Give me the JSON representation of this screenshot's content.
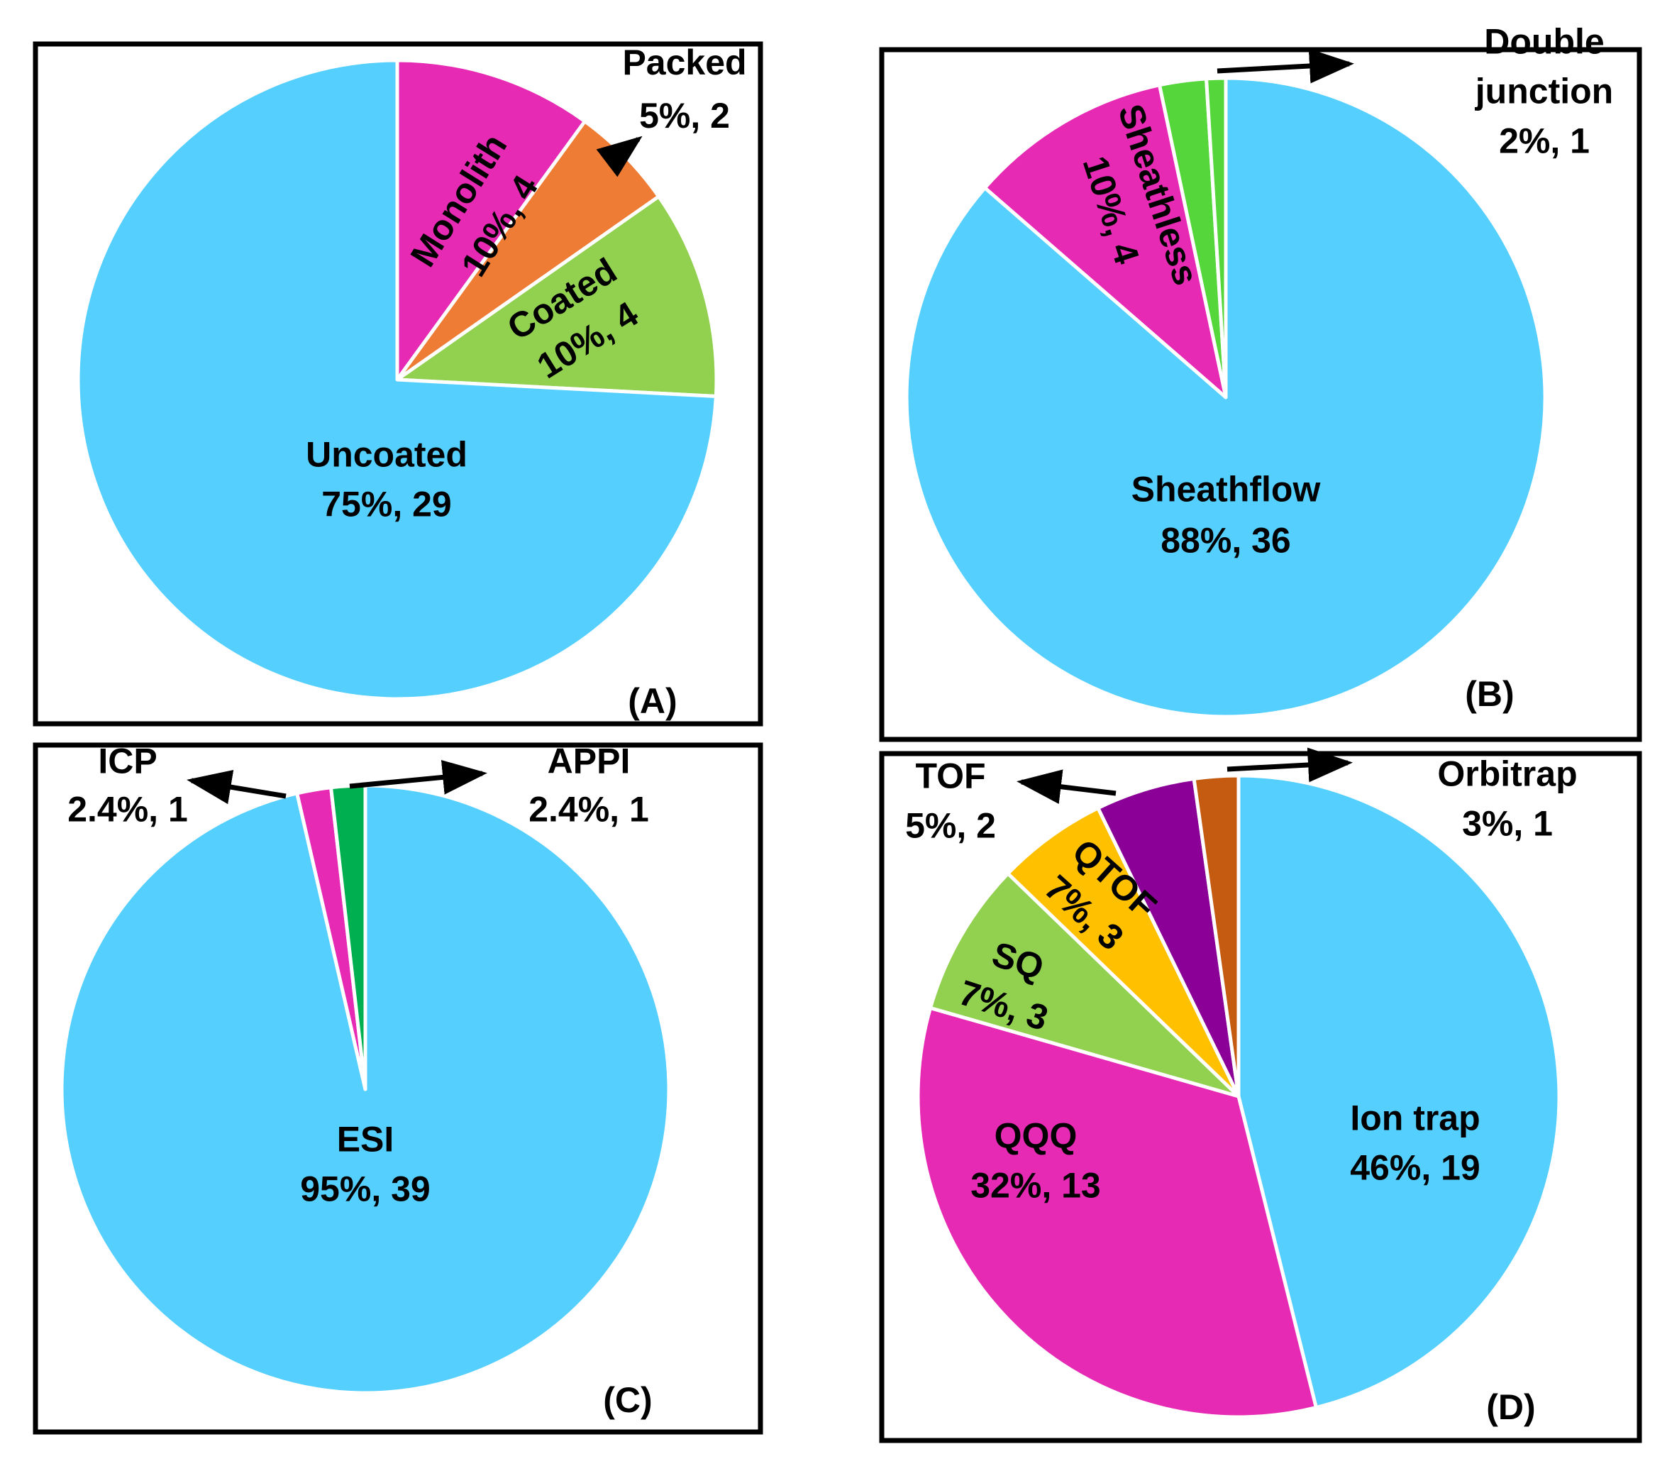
{
  "chart_data": [
    {
      "type": "pie",
      "panel_label": "(A)",
      "slices": [
        {
          "name": "Monolith",
          "label_lines": [
            "Monolith",
            "10%, 4"
          ],
          "percent": 10,
          "count": 4,
          "color": "#e62ab4"
        },
        {
          "name": "Packed",
          "label_lines": [
            "Packed",
            "5%, 2"
          ],
          "percent": 5,
          "count": 2,
          "color": "#ee7c34"
        },
        {
          "name": "Coated",
          "label_lines": [
            "Coated",
            "10%, 4"
          ],
          "percent": 10,
          "count": 4,
          "color": "#92d050"
        },
        {
          "name": "Uncoated",
          "label_lines": [
            "Uncoated",
            "75%, 29"
          ],
          "percent": 75,
          "count": 29,
          "color": "#55cffd"
        }
      ]
    },
    {
      "type": "pie",
      "panel_label": "(B)",
      "slices": [
        {
          "name": "Double junction",
          "label_lines": [
            "Double",
            "junction",
            "2%, 1"
          ],
          "percent": 2,
          "count": 1,
          "color": "#55cffd"
        },
        {
          "name": "Sheathflow",
          "label_lines": [
            "Sheathflow",
            "88%, 36"
          ],
          "percent": 88,
          "count": 36,
          "color": "#55cffd"
        },
        {
          "name": "Sheathless",
          "label_lines": [
            "Sheathless",
            "10%, 4"
          ],
          "percent": 10,
          "count": 4,
          "color": "#e62ab4"
        },
        {
          "name": "Double junction (green)",
          "label_lines": [],
          "percent": 2,
          "count": 1,
          "color": "#55d63b"
        }
      ]
    },
    {
      "type": "pie",
      "panel_label": "(C)",
      "slices": [
        {
          "name": "ESI",
          "label_lines": [
            "ESI",
            "95%, 39"
          ],
          "percent": 95,
          "count": 39,
          "color": "#55cffd"
        },
        {
          "name": "ICP",
          "label_lines": [
            "ICP",
            "2.4%, 1"
          ],
          "percent": 2.4,
          "count": 1,
          "color": "#e62ab4"
        },
        {
          "name": "APPI",
          "label_lines": [
            "APPI",
            "2.4%, 1"
          ],
          "percent": 2.4,
          "count": 1,
          "color": "#00b050"
        }
      ]
    },
    {
      "type": "pie",
      "panel_label": "(D)",
      "slices": [
        {
          "name": "Ion trap",
          "label_lines": [
            "Ion trap",
            "46%, 19"
          ],
          "percent": 46,
          "count": 19,
          "color": "#55cffd"
        },
        {
          "name": "QQQ",
          "label_lines": [
            "QQQ",
            "32%, 13"
          ],
          "percent": 32,
          "count": 13,
          "color": "#e62ab4"
        },
        {
          "name": "SQ",
          "label_lines": [
            "SQ",
            "7%, 3"
          ],
          "percent": 7,
          "count": 3,
          "color": "#92d050"
        },
        {
          "name": "QTOF",
          "label_lines": [
            "QTOF",
            "7%, 3"
          ],
          "percent": 7,
          "count": 3,
          "color": "#ffc000"
        },
        {
          "name": "TOF",
          "label_lines": [
            "TOF",
            "5%, 2"
          ],
          "percent": 5,
          "count": 2,
          "color": "#8b0096"
        },
        {
          "name": "Orbitrap",
          "label_lines": [
            "Orbitrap",
            "3%, 1"
          ],
          "percent": 3,
          "count": 1,
          "color": "#c55a11"
        }
      ]
    }
  ]
}
